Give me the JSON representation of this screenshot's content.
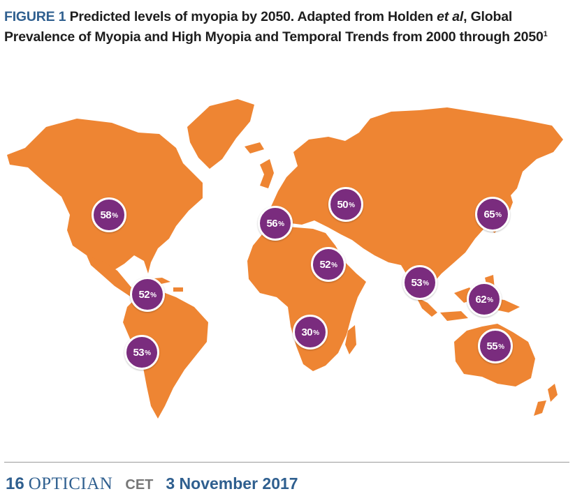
{
  "caption": {
    "figure_label": "FIGURE 1",
    "text_part1": "Predicted levels of myopia by 2050. Adapted from Holden ",
    "text_italic": "et al",
    "text_part2": ", Global Prevalence of Myopia and High Myopia and Temporal Trends from 2000 through 2050",
    "superscript": "1"
  },
  "map": {
    "land_color": "#ee8533",
    "bubble_color": "#7a2c7e",
    "regions": [
      {
        "id": "north-america",
        "value": "58"
      },
      {
        "id": "western-europe",
        "value": "56"
      },
      {
        "id": "eastern-europe",
        "value": "50"
      },
      {
        "id": "east-asia",
        "value": "65"
      },
      {
        "id": "north-africa-middle-east",
        "value": "52"
      },
      {
        "id": "central-america-caribbean",
        "value": "52"
      },
      {
        "id": "south-asia",
        "value": "53"
      },
      {
        "id": "southeast-asia",
        "value": "62"
      },
      {
        "id": "sub-saharan-africa",
        "value": "30"
      },
      {
        "id": "south-america",
        "value": "53"
      },
      {
        "id": "australasia",
        "value": "55"
      }
    ],
    "percent_symbol": "%"
  },
  "footer": {
    "page_number": "16",
    "magazine": "OPTICIAN",
    "section": "CET",
    "date": "3 November 2017"
  }
}
